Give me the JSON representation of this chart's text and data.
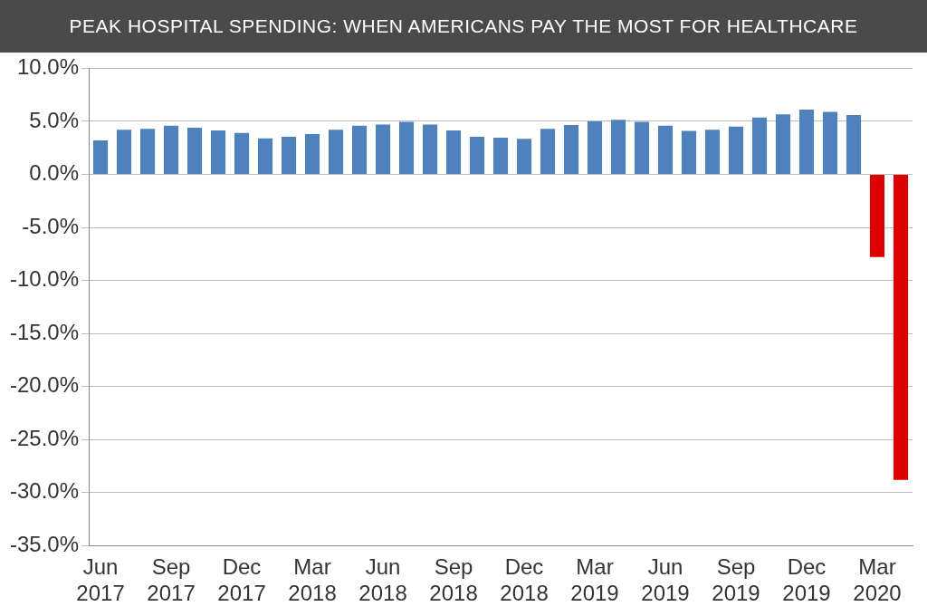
{
  "chart_data": {
    "type": "bar",
    "title": "PEAK HOSPITAL SPENDING: WHEN AMERICANS PAY THE MOST FOR HEALTHCARE",
    "categories": [
      "Jun 2017",
      null,
      null,
      "Sep 2017",
      null,
      null,
      "Dec 2017",
      null,
      null,
      "Mar 2018",
      null,
      null,
      "Jun 2018",
      null,
      null,
      "Sep 2018",
      null,
      null,
      "Dec 2018",
      null,
      null,
      "Mar 2019",
      null,
      null,
      "Jun 2019",
      null,
      null,
      "Sep 2019",
      null,
      null,
      "Dec 2019",
      null,
      null,
      "Mar 2020",
      null
    ],
    "values": [
      3.2,
      4.2,
      4.3,
      4.6,
      4.4,
      4.15,
      3.9,
      3.4,
      3.55,
      3.8,
      4.2,
      4.6,
      4.7,
      4.95,
      4.7,
      4.15,
      3.55,
      3.45,
      3.35,
      4.3,
      4.65,
      5.0,
      5.15,
      4.95,
      4.6,
      4.1,
      4.2,
      4.5,
      5.35,
      5.65,
      6.1,
      5.9,
      5.6,
      -7.8,
      -28.8
    ],
    "colors": [
      "#4f81bd",
      "#4f81bd",
      "#4f81bd",
      "#4f81bd",
      "#4f81bd",
      "#4f81bd",
      "#4f81bd",
      "#4f81bd",
      "#4f81bd",
      "#4f81bd",
      "#4f81bd",
      "#4f81bd",
      "#4f81bd",
      "#4f81bd",
      "#4f81bd",
      "#4f81bd",
      "#4f81bd",
      "#4f81bd",
      "#4f81bd",
      "#4f81bd",
      "#4f81bd",
      "#4f81bd",
      "#4f81bd",
      "#4f81bd",
      "#4f81bd",
      "#4f81bd",
      "#4f81bd",
      "#4f81bd",
      "#4f81bd",
      "#4f81bd",
      "#4f81bd",
      "#4f81bd",
      "#4f81bd",
      "#dd0000",
      "#dd0000"
    ],
    "ylim": [
      -35,
      10
    ],
    "yticks": [
      {
        "value": 10,
        "label": "10.0%"
      },
      {
        "value": 5,
        "label": "5.0%"
      },
      {
        "value": 0,
        "label": "0.0%"
      },
      {
        "value": -5,
        "label": "-5.0%"
      },
      {
        "value": -10,
        "label": "-10.0%"
      },
      {
        "value": -15,
        "label": "-15.0%"
      },
      {
        "value": -20,
        "label": "-20.0%"
      },
      {
        "value": -25,
        "label": "-25.0%"
      },
      {
        "value": -30,
        "label": "-30.0%"
      },
      {
        "value": -35,
        "label": "-35.0%"
      }
    ],
    "grid": "y",
    "legend": false
  }
}
